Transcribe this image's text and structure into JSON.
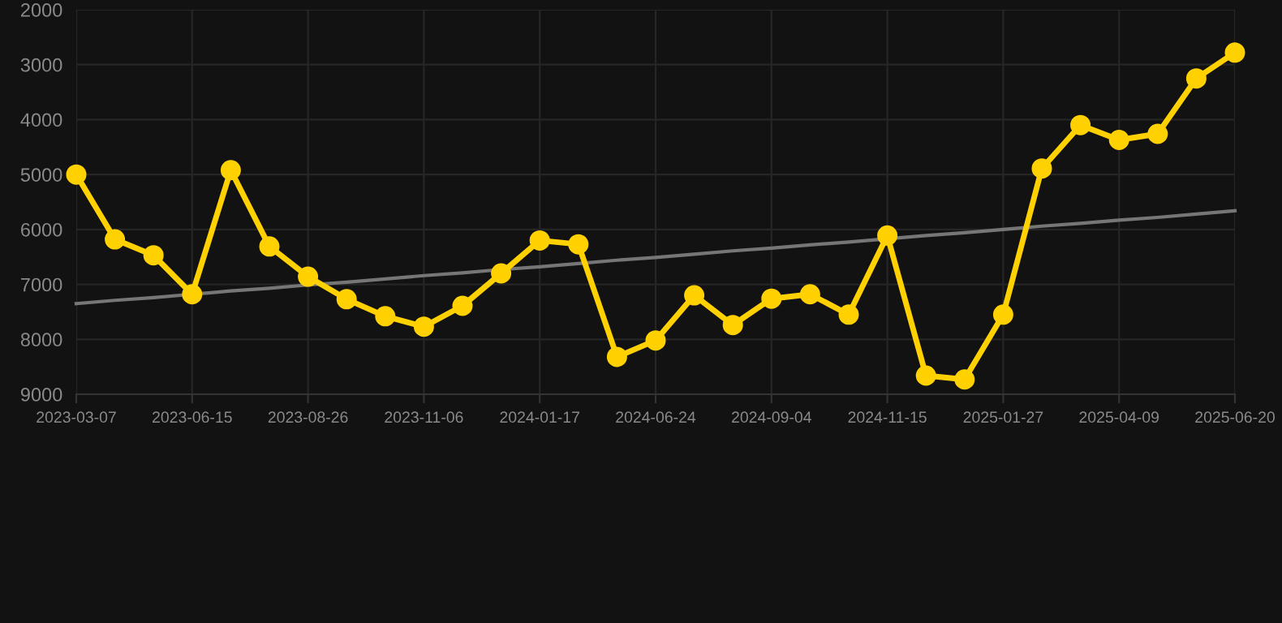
{
  "chart_data": {
    "type": "line",
    "categories": [
      "2023-03-07",
      null,
      null,
      "2023-06-15",
      null,
      null,
      "2023-08-26",
      null,
      null,
      "2023-11-06",
      null,
      null,
      "2024-01-17",
      null,
      null,
      "2024-06-24",
      null,
      null,
      "2024-09-04",
      null,
      null,
      "2024-11-15",
      null,
      null,
      "2025-01-27",
      null,
      null,
      "2025-04-09",
      null,
      null,
      "2025-06-20"
    ],
    "series": [
      {
        "color": "#ffd100",
        "marker": "circle",
        "values": [
          5000,
          6180,
          6470,
          7180,
          4920,
          6310,
          6860,
          7270,
          7580,
          7770,
          7390,
          6800,
          6200,
          6270,
          8320,
          8020,
          7200,
          7740,
          7260,
          7180,
          7550,
          6110,
          8660,
          8730,
          7550,
          4890,
          4100,
          4370,
          4260,
          3250,
          2780
        ]
      },
      {
        "color": "#767676",
        "marker": "none",
        "values": [
          7350,
          7290,
          7240,
          7180,
          7120,
          7070,
          7010,
          6960,
          6900,
          6840,
          6790,
          6730,
          6680,
          6620,
          6560,
          6510,
          6450,
          6390,
          6340,
          6280,
          6230,
          6170,
          6110,
          6060,
          6000,
          5940,
          5890,
          5830,
          5780,
          5720,
          5660
        ]
      }
    ],
    "ylim": [
      9000,
      2000
    ],
    "yticks": [
      2000,
      3000,
      4000,
      5000,
      6000,
      7000,
      8000,
      9000
    ],
    "grid": true
  }
}
